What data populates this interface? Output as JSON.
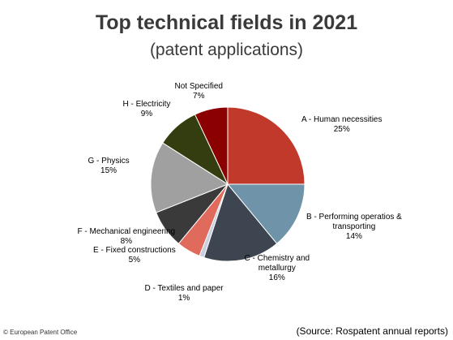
{
  "chart_data": {
    "type": "pie",
    "title": "Top technical fields in 2021",
    "subtitle": "(patent applications)",
    "slices": [
      {
        "name": "A - Human necessities",
        "label_lines": [
          "A - Human necessities"
        ],
        "value": 25,
        "value_label": "25%",
        "color": "#c0392b"
      },
      {
        "name": "B - Performing operatios & transporting",
        "label_lines": [
          "B - Performing operatios &",
          "transporting"
        ],
        "value": 14,
        "value_label": "14%",
        "color": "#6f93a8"
      },
      {
        "name": "C - Chemistry and metallurgy",
        "label_lines": [
          "C - Chemistry and",
          "metallurgy"
        ],
        "value": 16,
        "value_label": "16%",
        "color": "#3d4650"
      },
      {
        "name": "D - Textiles and paper",
        "label_lines": [
          "D - Textiles and paper"
        ],
        "value": 1,
        "value_label": "1%",
        "color": "#c9cfe0"
      },
      {
        "name": "E - Fixed constructions",
        "label_lines": [
          "E - Fixed constructions"
        ],
        "value": 5,
        "value_label": "5%",
        "color": "#e06a5c"
      },
      {
        "name": "F - Mechanical engineering",
        "label_lines": [
          "F - Mechanical engineering"
        ],
        "value": 8,
        "value_label": "8%",
        "color": "#3a3a3a"
      },
      {
        "name": "G - Physics",
        "label_lines": [
          "G - Physics"
        ],
        "value": 15,
        "value_label": "15%",
        "color": "#a0a0a0"
      },
      {
        "name": "H - Electricity",
        "label_lines": [
          "H - Electricity"
        ],
        "value": 9,
        "value_label": "9%",
        "color": "#343d0f"
      },
      {
        "name": "Not Specified",
        "label_lines": [
          "Not Specified"
        ],
        "value": 7,
        "value_label": "7%",
        "color": "#8b0000"
      }
    ]
  },
  "footer": {
    "copyright": "© European Patent Office",
    "source": "(Source: Rospatent annual reports)"
  }
}
